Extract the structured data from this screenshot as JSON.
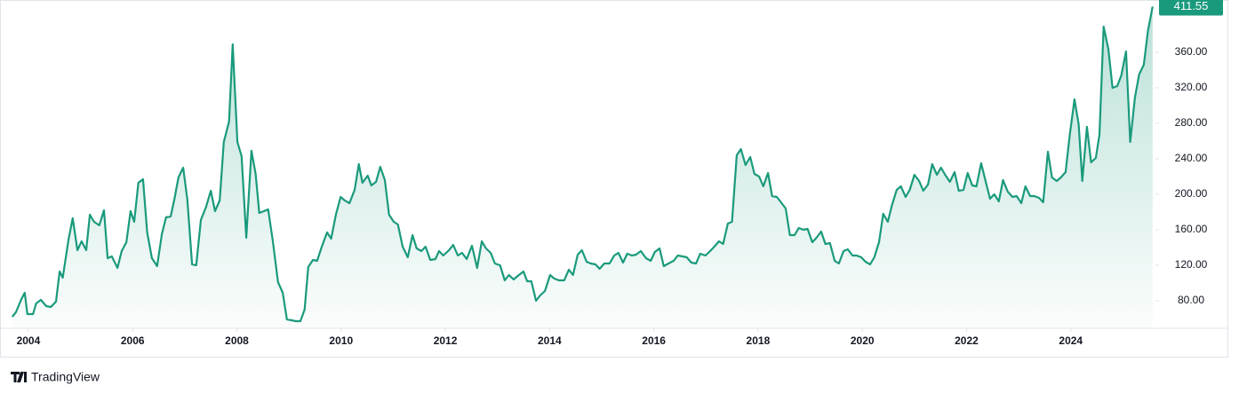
{
  "chart_data": {
    "type": "area",
    "x": [
      2003.69,
      2003.76,
      2003.86,
      2003.93,
      2003.98,
      2004.09,
      2004.15,
      2004.24,
      2004.34,
      2004.43,
      2004.53,
      2004.6,
      2004.66,
      2004.77,
      2004.85,
      2004.94,
      2005.02,
      2005.11,
      2005.18,
      2005.26,
      2005.36,
      2005.45,
      2005.52,
      2005.6,
      2005.71,
      2005.79,
      2005.88,
      2005.96,
      2006.03,
      2006.11,
      2006.2,
      2006.28,
      2006.37,
      2006.47,
      2006.56,
      2006.64,
      2006.73,
      2006.8,
      2006.88,
      2006.97,
      2007.05,
      2007.14,
      2007.22,
      2007.31,
      2007.41,
      2007.5,
      2007.58,
      2007.67,
      2007.75,
      2007.85,
      2007.92,
      2008.01,
      2008.09,
      2008.18,
      2008.28,
      2008.36,
      2008.43,
      2008.52,
      2008.6,
      2008.69,
      2008.79,
      2008.88,
      2008.96,
      2009.05,
      2009.13,
      2009.22,
      2009.3,
      2009.37,
      2009.46,
      2009.54,
      2009.63,
      2009.73,
      2009.81,
      2009.9,
      2009.99,
      2010.07,
      2010.16,
      2010.26,
      2010.34,
      2010.41,
      2010.51,
      2010.58,
      2010.67,
      2010.75,
      2010.84,
      2010.92,
      2011.01,
      2011.09,
      2011.18,
      2011.28,
      2011.37,
      2011.45,
      2011.54,
      2011.62,
      2011.71,
      2011.81,
      2011.88,
      2011.96,
      2012.07,
      2012.15,
      2012.24,
      2012.32,
      2012.41,
      2012.51,
      2012.61,
      2012.7,
      2012.78,
      2012.87,
      2012.95,
      2013.05,
      2013.14,
      2013.22,
      2013.31,
      2013.39,
      2013.5,
      2013.57,
      2013.65,
      2013.74,
      2013.82,
      2013.91,
      2014.01,
      2014.09,
      2014.18,
      2014.28,
      2014.37,
      2014.45,
      2014.54,
      2014.62,
      2014.71,
      2014.79,
      2014.88,
      2014.96,
      2015.05,
      2015.15,
      2015.24,
      2015.32,
      2015.41,
      2015.49,
      2015.58,
      2015.66,
      2015.75,
      2015.85,
      2015.94,
      2016.02,
      2016.11,
      2016.19,
      2016.28,
      2016.38,
      2016.46,
      2016.55,
      2016.63,
      2016.72,
      2016.81,
      2016.89,
      2016.99,
      2017.08,
      2017.16,
      2017.25,
      2017.33,
      2017.42,
      2017.5,
      2017.59,
      2017.67,
      2017.76,
      2017.85,
      2017.93,
      2018.02,
      2018.1,
      2018.19,
      2018.27,
      2018.36,
      2018.44,
      2018.53,
      2018.61,
      2018.7,
      2018.78,
      2018.87,
      2018.95,
      2019.04,
      2019.12,
      2019.21,
      2019.29,
      2019.38,
      2019.47,
      2019.55,
      2019.64,
      2019.72,
      2019.81,
      2019.89,
      2019.98,
      2020.06,
      2020.15,
      2020.23,
      2020.32,
      2020.4,
      2020.49,
      2020.57,
      2020.66,
      2020.74,
      2020.83,
      2020.91,
      2021.0,
      2021.09,
      2021.17,
      2021.26,
      2021.34,
      2021.43,
      2021.51,
      2021.6,
      2021.68,
      2021.77,
      2021.85,
      2021.94,
      2022.02,
      2022.11,
      2022.19,
      2022.28,
      2022.36,
      2022.45,
      2022.53,
      2022.62,
      2022.7,
      2022.79,
      2022.88,
      2022.96,
      2023.05,
      2023.13,
      2023.22,
      2023.3,
      2023.39,
      2023.47,
      2023.56,
      2023.64,
      2023.73,
      2023.81,
      2023.9,
      2023.98,
      2024.07,
      2024.15,
      2024.22,
      2024.31,
      2024.39,
      2024.48,
      2024.55,
      2024.63,
      2024.72,
      2024.8,
      2024.89,
      2024.97,
      2025.06,
      2025.14,
      2025.23,
      2025.31,
      2025.4,
      2025.48,
      2025.57
    ],
    "values": [
      62,
      67,
      81,
      89,
      65,
      65,
      77,
      81,
      74,
      73,
      79,
      113,
      106,
      149,
      173,
      137,
      147,
      137,
      177,
      169,
      165,
      182,
      128,
      130,
      117,
      136,
      146,
      181,
      169,
      213,
      217,
      157,
      128,
      119,
      155,
      174,
      175,
      194,
      219,
      230,
      194,
      121,
      120,
      171,
      186,
      204,
      181,
      193,
      259,
      282,
      369,
      259,
      243,
      151,
      249,
      223,
      179,
      181,
      183,
      147,
      101,
      89,
      59,
      58,
      57,
      57,
      70,
      118,
      126,
      125,
      141,
      157,
      150,
      177,
      197,
      193,
      190,
      205,
      234,
      213,
      221,
      210,
      214,
      231,
      216,
      177,
      169,
      166,
      141,
      129,
      154,
      139,
      136,
      141,
      126,
      127,
      136,
      131,
      137,
      143,
      131,
      134,
      127,
      142,
      117,
      147,
      139,
      134,
      122,
      120,
      103,
      109,
      104,
      108,
      113,
      102,
      102,
      80,
      86,
      91,
      109,
      105,
      103,
      103,
      115,
      109,
      132,
      137,
      124,
      122,
      121,
      116,
      122,
      122,
      131,
      134,
      123,
      133,
      131,
      132,
      136,
      128,
      125,
      135,
      139,
      119,
      122,
      125,
      131,
      130,
      129,
      123,
      122,
      133,
      131,
      136,
      141,
      147,
      144,
      167,
      169,
      244,
      251,
      233,
      242,
      223,
      220,
      209,
      224,
      198,
      197,
      191,
      184,
      154,
      154,
      162,
      160,
      161,
      146,
      151,
      158,
      144,
      145,
      125,
      122,
      136,
      138,
      131,
      131,
      129,
      124,
      121,
      129,
      146,
      178,
      169,
      188,
      205,
      209,
      197,
      205,
      222,
      215,
      204,
      211,
      234,
      222,
      230,
      221,
      214,
      225,
      204,
      205,
      224,
      210,
      209,
      235,
      216,
      195,
      200,
      192,
      216,
      203,
      197,
      198,
      190,
      209,
      198,
      198,
      196,
      191,
      248,
      219,
      215,
      219,
      225,
      267,
      307,
      279,
      215,
      276,
      236,
      241,
      267,
      389,
      364,
      320,
      322,
      334,
      361,
      259,
      309,
      335,
      346,
      384,
      411.55
    ],
    "color": "#1a9a7c",
    "xlim": [
      2003.66,
      2025.59
    ],
    "xticks": [
      2004,
      2006,
      2008,
      2010,
      2012,
      2014,
      2016,
      2018,
      2020,
      2022,
      2024
    ],
    "ylim": [
      50,
      415
    ],
    "yticks": [
      {
        "value": 80,
        "label": "80.00"
      },
      {
        "value": 120,
        "label": "120.00"
      },
      {
        "value": 160,
        "label": "160.00"
      },
      {
        "value": 200,
        "label": "200.00"
      },
      {
        "value": 240,
        "label": "240.00"
      },
      {
        "value": 280,
        "label": "280.00"
      },
      {
        "value": 320,
        "label": "320.00"
      },
      {
        "value": 360,
        "label": "360.00"
      }
    ],
    "last_value_label": "411.55",
    "watermark": "TradingView"
  }
}
